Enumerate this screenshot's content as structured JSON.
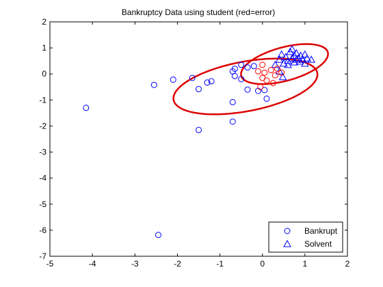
{
  "chart_data": {
    "type": "scatter",
    "title": "Bankruptcy Data using student (red=error)",
    "xlabel": "",
    "ylabel": "",
    "xlim": [
      -5,
      2
    ],
    "ylim": [
      -7,
      2
    ],
    "xticks": [
      -5,
      -4,
      -3,
      -2,
      -1,
      0,
      1,
      2
    ],
    "yticks": [
      -7,
      -6,
      -5,
      -4,
      -3,
      -2,
      -1,
      0,
      1,
      2
    ],
    "xtick_labels": [
      "-5",
      "-4",
      "-3",
      "-2",
      "-1",
      "0",
      "1",
      "2"
    ],
    "ytick_labels": [
      "-7",
      "-6",
      "-5",
      "-4",
      "-3",
      "-2",
      "-1",
      "0",
      "1",
      "2"
    ],
    "grid": false,
    "legend_position": "bottom-right",
    "legend": [
      {
        "label": "Bankrupt",
        "marker": "circle",
        "color": "#0000ff"
      },
      {
        "label": "Solvent",
        "marker": "triangle",
        "color": "#0000ff"
      }
    ],
    "colors": {
      "series": "#0000ff",
      "error": "#ff0000",
      "ellipse": "#dd0000"
    },
    "series": [
      {
        "name": "Bankrupt",
        "marker": "circle",
        "color": "#0000ff",
        "points": [
          [
            -4.15,
            -1.3
          ],
          [
            -2.45,
            -6.18
          ],
          [
            -2.55,
            -0.42
          ],
          [
            -2.1,
            -0.22
          ],
          [
            -1.65,
            -0.15
          ],
          [
            -1.5,
            -0.58
          ],
          [
            -1.5,
            -2.15
          ],
          [
            -1.3,
            -0.33
          ],
          [
            -1.2,
            -0.28
          ],
          [
            -0.7,
            0.1
          ],
          [
            -0.65,
            0.2
          ],
          [
            -0.65,
            -0.08
          ],
          [
            -0.7,
            -1.08
          ],
          [
            -0.7,
            -1.83
          ],
          [
            -0.5,
            0.35
          ],
          [
            -0.5,
            -0.2
          ],
          [
            -0.35,
            0.25
          ],
          [
            -0.35,
            -0.6
          ],
          [
            -0.2,
            0.3
          ],
          [
            -0.1,
            -0.65
          ],
          [
            0.05,
            -0.62
          ],
          [
            0.1,
            -0.95
          ]
        ]
      },
      {
        "name": "Solvent",
        "marker": "triangle",
        "color": "#0000ff",
        "points": [
          [
            0.3,
            0.35
          ],
          [
            0.4,
            0.55
          ],
          [
            0.45,
            0.75
          ],
          [
            0.5,
            0.4
          ],
          [
            0.55,
            0.65
          ],
          [
            0.6,
            0.5
          ],
          [
            0.65,
            0.85
          ],
          [
            0.7,
            0.95
          ],
          [
            0.7,
            0.6
          ],
          [
            0.75,
            0.7
          ],
          [
            0.75,
            0.45
          ],
          [
            0.8,
            0.8
          ],
          [
            0.8,
            0.55
          ],
          [
            0.85,
            0.6
          ],
          [
            0.88,
            0.48
          ],
          [
            0.9,
            0.7
          ],
          [
            0.95,
            0.55
          ],
          [
            1.0,
            0.75
          ],
          [
            1.05,
            0.6
          ],
          [
            1.0,
            0.4
          ],
          [
            1.15,
            0.55
          ],
          [
            0.6,
            0.35
          ],
          [
            0.48,
            -0.12
          ],
          [
            0.4,
            0.1
          ]
        ]
      },
      {
        "name": "",
        "marker": "circle",
        "color": "#ff0000",
        "points": [
          [
            -0.1,
            0.1
          ],
          [
            0.0,
            0.35
          ],
          [
            0.0,
            -0.15
          ],
          [
            0.05,
            0.05
          ],
          [
            0.1,
            -0.25
          ],
          [
            0.2,
            0.15
          ],
          [
            0.25,
            -0.35
          ],
          [
            0.35,
            0.2
          ],
          [
            0.45,
            0.05
          ],
          [
            -0.05,
            -0.5
          ],
          [
            0.3,
            -0.05
          ]
        ]
      }
    ],
    "ellipses": [
      {
        "center": [
          -0.4,
          -0.48
        ],
        "rx": 1.78,
        "ry": 0.92,
        "angle_deg": 21,
        "color": "#dd0000"
      },
      {
        "center": [
          0.52,
          0.38
        ],
        "rx": 1.13,
        "ry": 0.6,
        "angle_deg": 30,
        "color": "#dd0000"
      }
    ]
  }
}
